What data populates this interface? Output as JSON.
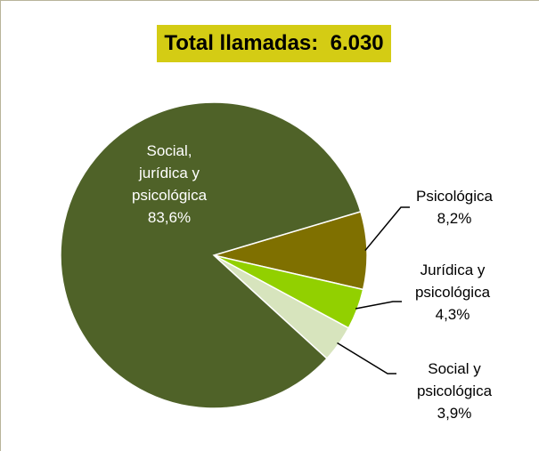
{
  "chart_data": {
    "type": "pie",
    "title": "Total llamadas:  6.030",
    "slices": [
      {
        "label_lines": [
          "Social,",
          "jurídica y",
          "psicológica"
        ],
        "value": 83.6,
        "value_label": "83,6%",
        "color": "#4f6228"
      },
      {
        "label_lines": [
          "Psicológica"
        ],
        "value": 8.2,
        "value_label": "8,2%",
        "color": "#7f7000"
      },
      {
        "label_lines": [
          "Jurídica y",
          "psicológica"
        ],
        "value": 4.3,
        "value_label": "4,3%",
        "color": "#92d000"
      },
      {
        "label_lines": [
          "Social y",
          "psicológica"
        ],
        "value": 3.9,
        "value_label": "3,9%",
        "color": "#d7e4bd"
      }
    ],
    "colors": {
      "title_background": "#d4cc14",
      "label_inside": "#ffffff",
      "label_outside": "#000000",
      "leader": "#000000"
    }
  }
}
